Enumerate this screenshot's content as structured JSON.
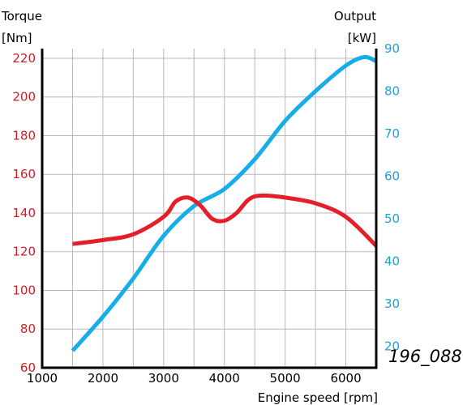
{
  "chart_data": {
    "type": "line",
    "figure_code": "196_088",
    "xlabel": "Engine speed [rpm]",
    "x_ticks": [
      "1000",
      "2000",
      "3000",
      "4000",
      "5000",
      "6000"
    ],
    "xlim": [
      1000,
      6500
    ],
    "y_left": {
      "label_line1": "Torque",
      "label_line2": "[Nm]",
      "ticks": [
        "60",
        "80",
        "100",
        "120",
        "140",
        "160",
        "180",
        "200",
        "220"
      ],
      "ylim": [
        60,
        225
      ]
    },
    "y_right": {
      "label_line1": "Output",
      "label_line2": "[kW]",
      "ticks": [
        "20",
        "30",
        "40",
        "50",
        "60",
        "70",
        "80",
        "90"
      ],
      "ylim": [
        15,
        90
      ]
    },
    "grid": true,
    "series": [
      {
        "axis": "left",
        "color": "#e3202a",
        "x": [
          1500,
          2000,
          2500,
          3000,
          3200,
          3400,
          3600,
          3800,
          4000,
          4200,
          4400,
          4600,
          5000,
          5500,
          6000,
          6500
        ],
        "y": [
          124,
          126,
          129,
          138,
          146,
          148,
          144,
          137,
          136,
          140,
          147,
          149,
          148,
          145,
          138,
          123
        ]
      },
      {
        "axis": "right",
        "color": "#17ade6",
        "x": [
          1500,
          2000,
          2500,
          3000,
          3500,
          4000,
          4500,
          5000,
          5500,
          6000,
          6300,
          6500
        ],
        "y": [
          19,
          27,
          36,
          46,
          53,
          57,
          64,
          73,
          80,
          86,
          88,
          87
        ]
      }
    ],
    "colors": {
      "left_axis_text": "#cc1f27",
      "right_axis_text": "#1aa3d9",
      "grid": "#b8b8b8",
      "axis": "#000000"
    }
  }
}
